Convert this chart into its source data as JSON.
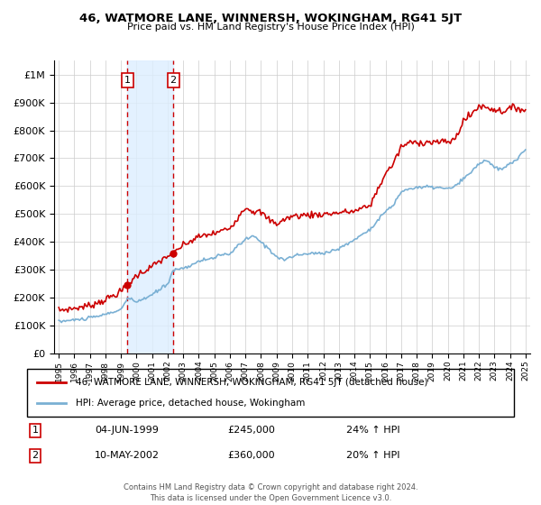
{
  "title": "46, WATMORE LANE, WINNERSH, WOKINGHAM, RG41 5JT",
  "subtitle": "Price paid vs. HM Land Registry's House Price Index (HPI)",
  "legend_line1": "46, WATMORE LANE, WINNERSH, WOKINGHAM, RG41 5JT (detached house)",
  "legend_line2": "HPI: Average price, detached house, Wokingham",
  "annotation1_label": "1",
  "annotation1_date": "04-JUN-1999",
  "annotation1_price": "£245,000",
  "annotation1_hpi": "24% ↑ HPI",
  "annotation2_label": "2",
  "annotation2_date": "10-MAY-2002",
  "annotation2_price": "£360,000",
  "annotation2_hpi": "20% ↑ HPI",
  "footer": "Contains HM Land Registry data © Crown copyright and database right 2024.\nThis data is licensed under the Open Government Licence v3.0.",
  "sale1_year": 1999.42,
  "sale1_value": 245000,
  "sale2_year": 2002.36,
  "sale2_value": 360000,
  "red_color": "#cc0000",
  "blue_color": "#7ab0d4",
  "shade_color": "#ddeeff",
  "ylim_min": 0,
  "ylim_max": 1050000,
  "hpi_years": [
    1995,
    1995.08,
    1995.17,
    1995.25,
    1995.33,
    1995.42,
    1995.5,
    1995.58,
    1995.67,
    1995.75,
    1995.83,
    1995.92,
    1996,
    1996.08,
    1996.17,
    1996.25,
    1996.33,
    1996.42,
    1996.5,
    1996.58,
    1996.67,
    1996.75,
    1996.83,
    1996.92,
    1997,
    1997.08,
    1997.17,
    1997.25,
    1997.33,
    1997.42,
    1997.5,
    1997.58,
    1997.67,
    1997.75,
    1997.83,
    1997.92,
    1998,
    1998.08,
    1998.17,
    1998.25,
    1998.33,
    1998.42,
    1998.5,
    1998.58,
    1998.67,
    1998.75,
    1998.83,
    1998.92,
    1999,
    1999.08,
    1999.17,
    1999.25,
    1999.33,
    1999.42,
    1999.5,
    1999.58,
    1999.67,
    1999.75,
    1999.83,
    1999.92,
    2000,
    2000.08,
    2000.17,
    2000.25,
    2000.33,
    2000.42,
    2000.5,
    2000.58,
    2000.67,
    2000.75,
    2000.83,
    2000.92,
    2001,
    2001.08,
    2001.17,
    2001.25,
    2001.33,
    2001.42,
    2001.5,
    2001.58,
    2001.67,
    2001.75,
    2001.83,
    2001.92,
    2002,
    2002.08,
    2002.17,
    2002.25,
    2002.33,
    2002.42,
    2002.5,
    2002.58,
    2002.67,
    2002.75,
    2002.83,
    2002.92,
    2003,
    2003.08,
    2003.17,
    2003.25,
    2003.33,
    2003.42,
    2003.5,
    2003.58,
    2003.67,
    2003.75,
    2003.83,
    2003.92,
    2004,
    2004.08,
    2004.17,
    2004.25,
    2004.33,
    2004.42,
    2004.5,
    2004.58,
    2004.67,
    2004.75,
    2004.83,
    2004.92,
    2005,
    2005.08,
    2005.17,
    2005.25,
    2005.33,
    2005.42,
    2005.5,
    2005.58,
    2005.67,
    2005.75,
    2005.83,
    2005.92,
    2006,
    2006.08,
    2006.17,
    2006.25,
    2006.33,
    2006.42,
    2006.5,
    2006.58,
    2006.67,
    2006.75,
    2006.83,
    2006.92,
    2007,
    2007.08,
    2007.17,
    2007.25,
    2007.33,
    2007.42,
    2007.5,
    2007.58,
    2007.67,
    2007.75,
    2007.83,
    2007.92,
    2008,
    2008.08,
    2008.17,
    2008.25,
    2008.33,
    2008.42,
    2008.5,
    2008.58,
    2008.67,
    2008.75,
    2008.83,
    2008.92,
    2009,
    2009.08,
    2009.17,
    2009.25,
    2009.33,
    2009.42,
    2009.5,
    2009.58,
    2009.67,
    2009.75,
    2009.83,
    2009.92,
    2010,
    2010.08,
    2010.17,
    2010.25,
    2010.33,
    2010.42,
    2010.5,
    2010.58,
    2010.67,
    2010.75,
    2010.83,
    2010.92,
    2011,
    2011.08,
    2011.17,
    2011.25,
    2011.33,
    2011.42,
    2011.5,
    2011.58,
    2011.67,
    2011.75,
    2011.83,
    2011.92,
    2012,
    2012.08,
    2012.17,
    2012.25,
    2012.33,
    2012.42,
    2012.5,
    2012.58,
    2012.67,
    2012.75,
    2012.83,
    2012.92,
    2013,
    2013.08,
    2013.17,
    2013.25,
    2013.33,
    2013.42,
    2013.5,
    2013.58,
    2013.67,
    2013.75,
    2013.83,
    2013.92,
    2014,
    2014.08,
    2014.17,
    2014.25,
    2014.33,
    2014.42,
    2014.5,
    2014.58,
    2014.67,
    2014.75,
    2014.83,
    2014.92,
    2015,
    2015.08,
    2015.17,
    2015.25,
    2015.33,
    2015.42,
    2015.5,
    2015.58,
    2015.67,
    2015.75,
    2015.83,
    2015.92,
    2016,
    2016.08,
    2016.17,
    2016.25,
    2016.33,
    2016.42,
    2016.5,
    2016.58,
    2016.67,
    2016.75,
    2016.83,
    2016.92,
    2017,
    2017.08,
    2017.17,
    2017.25,
    2017.33,
    2017.42,
    2017.5,
    2017.58,
    2017.67,
    2017.75,
    2017.83,
    2017.92,
    2018,
    2018.08,
    2018.17,
    2018.25,
    2018.33,
    2018.42,
    2018.5,
    2018.58,
    2018.67,
    2018.75,
    2018.83,
    2018.92,
    2019,
    2019.08,
    2019.17,
    2019.25,
    2019.33,
    2019.42,
    2019.5,
    2019.58,
    2019.67,
    2019.75,
    2019.83,
    2019.92,
    2020,
    2020.08,
    2020.17,
    2020.25,
    2020.33,
    2020.42,
    2020.5,
    2020.58,
    2020.67,
    2020.75,
    2020.83,
    2020.92,
    2021,
    2021.08,
    2021.17,
    2021.25,
    2021.33,
    2021.42,
    2021.5,
    2021.58,
    2021.67,
    2021.75,
    2021.83,
    2021.92,
    2022,
    2022.08,
    2022.17,
    2022.25,
    2022.33,
    2022.42,
    2022.5,
    2022.58,
    2022.67,
    2022.75,
    2022.83,
    2022.92,
    2023,
    2023.08,
    2023.17,
    2023.25,
    2023.33,
    2023.42,
    2023.5,
    2023.58,
    2023.67,
    2023.75,
    2023.83,
    2023.92,
    2024,
    2024.08,
    2024.17,
    2024.25,
    2024.33,
    2024.42,
    2024.5,
    2024.58,
    2024.67,
    2024.75,
    2024.83,
    2024.92,
    2025
  ]
}
